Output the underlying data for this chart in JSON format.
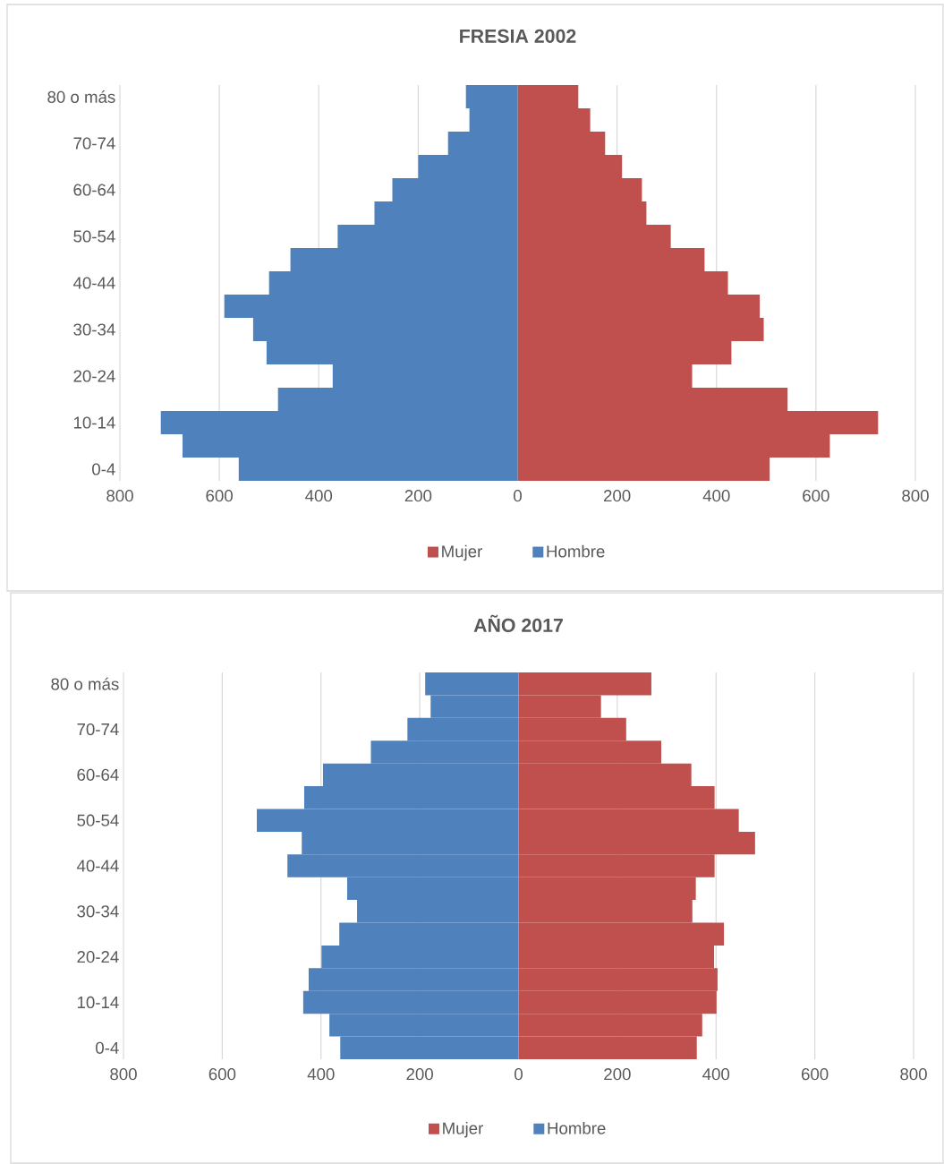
{
  "chart_data": [
    {
      "type": "bar",
      "orientation": "horizontal",
      "title": "FRESIA 2002",
      "categories": [
        "80 o más",
        null,
        "70-74",
        null,
        "60-64",
        null,
        "50-54",
        null,
        "40-44",
        null,
        "30-34",
        null,
        "20-24",
        null,
        "10-14",
        null,
        "0-4"
      ],
      "series": [
        {
          "name": "Mujer",
          "color": "#c0504d",
          "values": [
            122,
            146,
            176,
            210,
            250,
            259,
            308,
            376,
            423,
            487,
            495,
            430,
            351,
            543,
            725,
            628,
            507
          ]
        },
        {
          "name": "Hombre",
          "color": "#4f81bd",
          "values": [
            -104,
            -97,
            -140,
            -200,
            -252,
            -288,
            -362,
            -457,
            -500,
            -590,
            -532,
            -505,
            -372,
            -482,
            -718,
            -674,
            -561
          ]
        }
      ],
      "xlim": [
        -800,
        800
      ],
      "xticks": [
        {
          "value": -800,
          "label": "800"
        },
        {
          "value": -600,
          "label": "600"
        },
        {
          "value": -400,
          "label": "400"
        },
        {
          "value": -200,
          "label": "200"
        },
        0,
        200,
        400,
        600,
        800
      ],
      "grid": "x",
      "legend": "bottom",
      "stacked": true
    },
    {
      "type": "bar",
      "orientation": "horizontal",
      "title": "AÑO 2017",
      "categories": [
        "80 o más",
        null,
        "70-74",
        null,
        "60-64",
        null,
        "50-54",
        null,
        "40-44",
        null,
        "30-34",
        null,
        "20-24",
        null,
        "10-14",
        null,
        "0-4"
      ],
      "series": [
        {
          "name": "Mujer",
          "color": "#c0504d",
          "values": [
            269,
            167,
            218,
            289,
            350,
            397,
            446,
            479,
            397,
            359,
            352,
            416,
            396,
            403,
            401,
            372,
            361
          ]
        },
        {
          "name": "Hombre",
          "color": "#4f81bd",
          "values": [
            -189,
            -178,
            -225,
            -299,
            -396,
            -434,
            -530,
            -439,
            -468,
            -347,
            -327,
            -363,
            -399,
            -425,
            -436,
            -383,
            -361
          ]
        }
      ],
      "xlim": [
        -800,
        800
      ],
      "xticks": [
        {
          "value": -800,
          "label": "800"
        },
        {
          "value": -600,
          "label": "600"
        },
        {
          "value": -400,
          "label": "400"
        },
        {
          "value": -200,
          "label": "200"
        },
        0,
        200,
        400,
        600,
        800
      ],
      "grid": "x",
      "legend": "bottom",
      "stacked": true
    }
  ]
}
